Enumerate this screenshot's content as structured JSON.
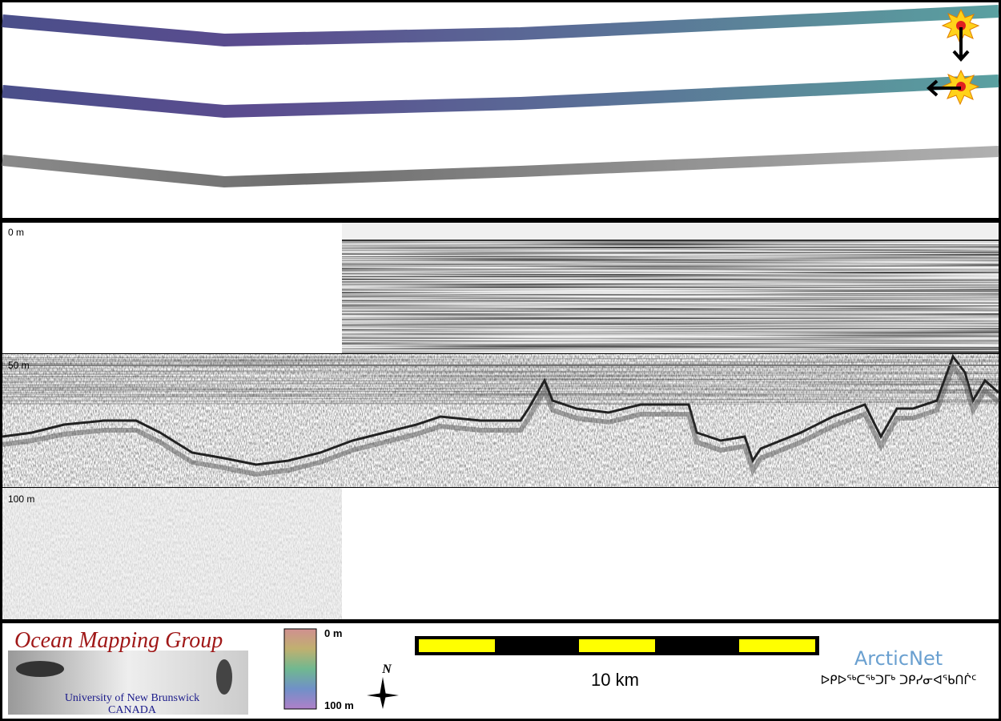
{
  "depth_labels": {
    "top": "0 m",
    "middle": "50 m",
    "bottom": "100 m"
  },
  "logo": {
    "title": "Ocean Mapping Group",
    "university": "University of New Brunswick",
    "country": "CANADA"
  },
  "colorbar": {
    "top": "0 m",
    "bottom": "100 m"
  },
  "compass": "N",
  "scale_bar": "10 km",
  "partner": {
    "name": "ArcticNet",
    "syllabics": "ᐅᑭᐅᖅᑕᖅᑐᒥᒃ ᑐᑭᓯᓂᐊᖃᑎᒌᑦ"
  }
}
